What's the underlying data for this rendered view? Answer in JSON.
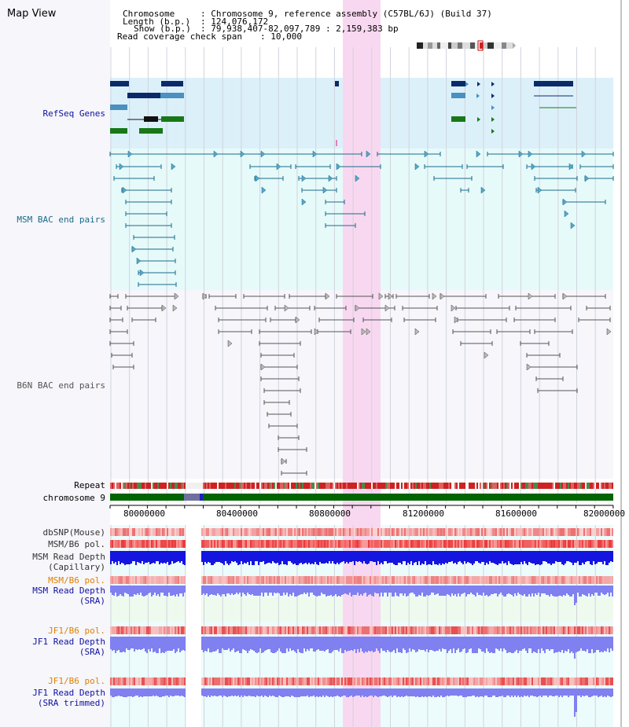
{
  "header": {
    "title": "Map View",
    "chromosome_label": "Chromosome",
    "chromosome_value": ": Chromosome 9, reference assembly (C57BL/6J) (Build 37)",
    "length_label": "Length (b.p.)",
    "length_value": ": 124,076,172",
    "show_label": "Show (b.p.)",
    "show_value": ": 79,938,407-82,097,789 : 2,159,383 bp",
    "coverage_label": "Read coverage check span",
    "coverage_value": ": 10,000"
  },
  "tracks": {
    "refseq_genes": "RefSeq Genes",
    "msm_bac": "MSM BAC end pairs",
    "b6n_bac": "B6N BAC end pairs",
    "repeat": "Repeat",
    "chromosome": "chromosome 9",
    "dbsnp": "dbSNP(Mouse)",
    "msm_b6_pol": "MSM/B6 pol.",
    "msm_depth_cap_1": "MSM Read Depth",
    "msm_depth_cap_2": "(Capillary)",
    "msm_b6_pol_2": "MSM/B6 pol.",
    "msm_depth_sra_1": "MSM Read Depth",
    "msm_depth_sra_2": "(SRA)",
    "jf1_b6_pol": "JF1/B6 pol.",
    "jf1_depth_1": "JF1 Read Depth",
    "jf1_depth_2": "(SRA)",
    "jf1_b6_pol_2": "JF1/B6 pol.",
    "jf1_trim_1": "JF1 Read Depth",
    "jf1_trim_2": "(SRA trimmed)"
  },
  "axis": {
    "ticks": [
      "80000000",
      "80400000",
      "80800000",
      "81200000",
      "81600000",
      "82000000"
    ]
  },
  "colors": {
    "refseq_bg": "#dcf0fa",
    "msm_bg": "#e6fafa",
    "b6n_bg": "#f6f6fb",
    "highlight": "#f8d8f0",
    "sidebar_bg": "#f6f6fb",
    "gene_dark": "#0a2a6a",
    "gene_light": "#4a90c0",
    "gene_green": "#187818",
    "msm_line": "#1a6a8a",
    "b6n_line": "#555555",
    "chrom_green": "#006400",
    "repeat_red": "#cc2222",
    "depth_blue": "#1515e0",
    "depth_light": "#8080f0",
    "pol_label": "#e08000",
    "depth_label": "#1010a0"
  }
}
